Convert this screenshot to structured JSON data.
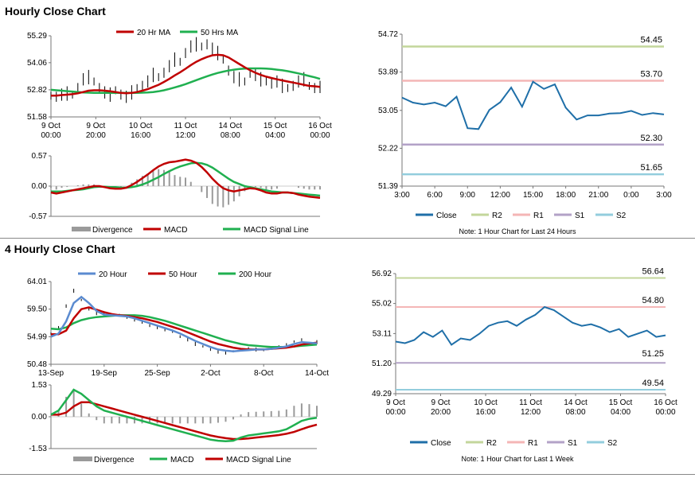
{
  "section1": {
    "title": "Hourly Close Chart"
  },
  "section2": {
    "title": "4 Hourly Close Chart"
  },
  "colors": {
    "close": "#1f6fa8",
    "ma20": "#c00000",
    "ma50": "#20b050",
    "r2": "#c3d69b",
    "r1": "#f4b6b6",
    "s1": "#b3a2c7",
    "s2": "#93cddd",
    "hist": "#9a9a9a",
    "ohlc": "#000000",
    "ma20_4h": "#5b8bd0",
    "ma200": "#20b050"
  },
  "chart_data": [
    {
      "id": "hourly_price",
      "type": "line",
      "legend": [
        "20 Hr MA",
        "50 Hrs MA"
      ],
      "y_ticks": [
        "55.29",
        "54.06",
        "52.82",
        "51.58"
      ],
      "ylim": [
        51.58,
        55.29
      ],
      "x_ticks": [
        [
          "9 Oct",
          "00:00"
        ],
        [
          "9 Oct",
          "20:00"
        ],
        [
          "10 Oct",
          "16:00"
        ],
        [
          "11 Oct",
          "12:00"
        ],
        [
          "14 Oct",
          "08:00"
        ],
        [
          "15 Oct",
          "04:00"
        ],
        [
          "16 Oct",
          "00:00"
        ]
      ],
      "series": [
        {
          "name": "Close",
          "values": [
            52.55,
            52.5,
            52.6,
            52.65,
            52.6,
            52.9,
            53.3,
            53.4,
            53.2,
            52.9,
            52.7,
            52.6,
            52.8,
            52.6,
            52.5,
            52.7,
            52.9,
            53.0,
            53.2,
            53.5,
            53.4,
            53.6,
            53.9,
            54.2,
            54.1,
            54.5,
            54.8,
            54.9,
            54.8,
            54.9,
            54.7,
            54.5,
            54.2,
            53.7,
            53.4,
            53.3,
            53.2,
            53.6,
            53.5,
            53.3,
            53.2,
            53.1,
            53.2,
            53.0,
            52.9,
            53.0,
            53.2,
            53.3,
            53.0,
            52.9,
            52.95
          ]
        },
        {
          "name": "20 Hr MA",
          "values": [
            52.55,
            52.55,
            52.58,
            52.6,
            52.62,
            52.66,
            52.72,
            52.78,
            52.8,
            52.8,
            52.78,
            52.75,
            52.72,
            52.68,
            52.66,
            52.68,
            52.72,
            52.78,
            52.85,
            52.95,
            53.05,
            53.18,
            53.32,
            53.48,
            53.62,
            53.78,
            53.95,
            54.1,
            54.22,
            54.32,
            54.4,
            54.42,
            54.4,
            54.3,
            54.15,
            54.0,
            53.85,
            53.72,
            53.6,
            53.5,
            53.42,
            53.36,
            53.3,
            53.25,
            53.2,
            53.15,
            53.1,
            53.05,
            53.0,
            52.98,
            52.95
          ]
        },
        {
          "name": "50 Hrs MA",
          "values": [
            52.82,
            52.8,
            52.78,
            52.76,
            52.74,
            52.72,
            52.7,
            52.69,
            52.68,
            52.68,
            52.68,
            52.68,
            52.68,
            52.68,
            52.68,
            52.68,
            52.68,
            52.69,
            52.7,
            52.72,
            52.75,
            52.8,
            52.86,
            52.93,
            53.0,
            53.08,
            53.17,
            53.26,
            53.35,
            53.44,
            53.52,
            53.59,
            53.65,
            53.7,
            53.74,
            53.77,
            53.79,
            53.8,
            53.8,
            53.8,
            53.79,
            53.77,
            53.74,
            53.71,
            53.67,
            53.62,
            53.57,
            53.51,
            53.45,
            53.39,
            53.32
          ]
        }
      ]
    },
    {
      "id": "hourly_macd",
      "type": "line",
      "legend": [
        "Divergence",
        "MACD",
        "MACD Signal Line"
      ],
      "y_ticks": [
        "0.57",
        "0.00",
        "-0.57"
      ],
      "ylim": [
        -0.57,
        0.57
      ],
      "series": [
        {
          "name": "MACD",
          "values": [
            -0.12,
            -0.14,
            -0.12,
            -0.1,
            -0.08,
            -0.06,
            -0.04,
            -0.02,
            0.0,
            0.0,
            -0.02,
            -0.04,
            -0.05,
            -0.05,
            -0.03,
            0.02,
            0.08,
            0.15,
            0.22,
            0.3,
            0.37,
            0.42,
            0.45,
            0.46,
            0.48,
            0.5,
            0.48,
            0.44,
            0.36,
            0.26,
            0.14,
            0.04,
            -0.04,
            -0.08,
            -0.1,
            -0.08,
            -0.06,
            -0.04,
            -0.05,
            -0.08,
            -0.12,
            -0.14,
            -0.14,
            -0.12,
            -0.12,
            -0.13,
            -0.16,
            -0.18,
            -0.2,
            -0.21,
            -0.22
          ]
        },
        {
          "name": "MACD Signal Line",
          "values": [
            -0.1,
            -0.1,
            -0.1,
            -0.09,
            -0.08,
            -0.07,
            -0.06,
            -0.04,
            -0.02,
            -0.01,
            -0.01,
            -0.02,
            -0.02,
            -0.03,
            -0.03,
            -0.02,
            0.0,
            0.03,
            0.07,
            0.12,
            0.17,
            0.23,
            0.28,
            0.33,
            0.37,
            0.4,
            0.43,
            0.44,
            0.43,
            0.4,
            0.35,
            0.28,
            0.21,
            0.14,
            0.08,
            0.04,
            0.0,
            -0.02,
            -0.04,
            -0.06,
            -0.08,
            -0.1,
            -0.11,
            -0.12,
            -0.12,
            -0.13,
            -0.14,
            -0.15,
            -0.16,
            -0.17,
            -0.18
          ]
        }
      ]
    },
    {
      "id": "hourly_24h",
      "type": "line",
      "y_ticks": [
        "54.72",
        "53.89",
        "53.05",
        "52.22",
        "51.39"
      ],
      "ylim": [
        51.39,
        54.72
      ],
      "x_ticks": [
        "3:00",
        "6:00",
        "9:00",
        "12:00",
        "15:00",
        "18:00",
        "21:00",
        "0:00",
        "3:00"
      ],
      "levels": [
        {
          "name": "R2",
          "value": 54.45,
          "label": "54.45"
        },
        {
          "name": "R1",
          "value": 53.7,
          "label": "53.70"
        },
        {
          "name": "S1",
          "value": 52.3,
          "label": "52.30"
        },
        {
          "name": "S2",
          "value": 51.65,
          "label": "51.65"
        }
      ],
      "series": [
        {
          "name": "Close",
          "values": [
            53.33,
            53.22,
            53.18,
            53.22,
            53.14,
            53.35,
            52.66,
            52.64,
            53.06,
            53.23,
            53.55,
            53.13,
            53.68,
            53.52,
            53.62,
            53.11,
            52.85,
            52.94,
            52.94,
            52.98,
            52.99,
            53.04,
            52.95,
            52.99,
            52.96
          ]
        }
      ],
      "legend": [
        "Close",
        "R2",
        "R1",
        "S1",
        "S2"
      ],
      "note": "Note: 1 Hour Chart for Last 24 Hours"
    },
    {
      "id": "four_hourly_price",
      "type": "line",
      "legend": [
        "20 Hour",
        "50 Hour",
        "200 Hour"
      ],
      "y_ticks": [
        "64.01",
        "59.50",
        "54.99",
        "50.48"
      ],
      "ylim": [
        50.48,
        64.01
      ],
      "x_ticks": [
        "13-Sep",
        "19-Sep",
        "25-Sep",
        "2-Oct",
        "8-Oct",
        "14-Oct"
      ],
      "series": [
        {
          "name": "Close",
          "values": [
            55.5,
            56.5,
            60.0,
            62.5,
            61.0,
            59.5,
            58.8,
            58.8,
            58.6,
            58.5,
            58.2,
            57.8,
            57.3,
            56.8,
            56.5,
            56.2,
            55.8,
            55.0,
            54.5,
            53.8,
            53.4,
            52.9,
            52.5,
            52.4,
            52.6,
            52.8,
            53.0,
            52.9,
            52.8,
            53.2,
            53.3,
            53.6,
            54.2,
            54.5,
            53.8,
            54.1
          ]
        },
        {
          "name": "20 Hour",
          "values": [
            55.0,
            55.5,
            57.5,
            60.5,
            61.5,
            60.5,
            59.2,
            58.6,
            58.5,
            58.4,
            58.3,
            58.0,
            57.6,
            57.2,
            56.8,
            56.4,
            56.0,
            55.5,
            54.9,
            54.3,
            53.8,
            53.3,
            52.9,
            52.7,
            52.6,
            52.7,
            52.8,
            52.9,
            52.9,
            53.0,
            53.2,
            53.4,
            53.8,
            54.1,
            54.0,
            53.9
          ]
        },
        {
          "name": "50 Hour",
          "values": [
            55.4,
            55.4,
            56.0,
            58.0,
            59.5,
            59.8,
            59.4,
            59.0,
            58.7,
            58.5,
            58.4,
            58.2,
            58.0,
            57.7,
            57.4,
            57.0,
            56.6,
            56.2,
            55.7,
            55.2,
            54.7,
            54.2,
            53.8,
            53.5,
            53.2,
            53.0,
            52.9,
            52.9,
            52.9,
            53.0,
            53.1,
            53.2,
            53.4,
            53.7,
            53.9,
            54.0
          ]
        },
        {
          "name": "200 Hour",
          "values": [
            56.3,
            56.2,
            56.5,
            57.2,
            57.7,
            58.0,
            58.2,
            58.3,
            58.4,
            58.5,
            58.5,
            58.5,
            58.4,
            58.2,
            57.9,
            57.6,
            57.2,
            56.8,
            56.4,
            56.0,
            55.6,
            55.2,
            54.8,
            54.4,
            54.1,
            53.8,
            53.6,
            53.5,
            53.4,
            53.3,
            53.3,
            53.3,
            53.4,
            53.5,
            53.6,
            53.7
          ]
        }
      ]
    },
    {
      "id": "four_hourly_macd",
      "type": "line",
      "legend": [
        "Divergence",
        "MACD",
        "MACD Signal Line"
      ],
      "y_ticks": [
        "1.53",
        "0.00",
        "-1.53"
      ],
      "ylim": [
        -1.53,
        1.53
      ],
      "series": [
        {
          "name": "MACD",
          "values": [
            0.1,
            0.3,
            0.8,
            1.3,
            1.1,
            0.8,
            0.5,
            0.3,
            0.2,
            0.1,
            0.0,
            -0.1,
            -0.2,
            -0.3,
            -0.4,
            -0.5,
            -0.6,
            -0.7,
            -0.8,
            -0.9,
            -1.0,
            -1.1,
            -1.15,
            -1.18,
            -1.15,
            -1.0,
            -0.9,
            -0.85,
            -0.8,
            -0.75,
            -0.7,
            -0.6,
            -0.4,
            -0.2,
            -0.1,
            -0.05
          ]
        },
        {
          "name": "MACD Signal Line",
          "values": [
            0.1,
            0.1,
            0.2,
            0.5,
            0.7,
            0.7,
            0.6,
            0.5,
            0.4,
            0.3,
            0.2,
            0.1,
            0.0,
            -0.1,
            -0.2,
            -0.3,
            -0.4,
            -0.5,
            -0.6,
            -0.7,
            -0.8,
            -0.9,
            -0.97,
            -1.03,
            -1.07,
            -1.07,
            -1.04,
            -1.0,
            -0.96,
            -0.92,
            -0.88,
            -0.82,
            -0.73,
            -0.6,
            -0.48,
            -0.38
          ]
        }
      ]
    },
    {
      "id": "four_hourly_week",
      "type": "line",
      "y_ticks": [
        "56.92",
        "55.02",
        "53.11",
        "51.20",
        "49.29"
      ],
      "ylim": [
        49.29,
        56.92
      ],
      "x_ticks": [
        [
          "9 Oct",
          "00:00"
        ],
        [
          "9 Oct",
          "20:00"
        ],
        [
          "10 Oct",
          "16:00"
        ],
        [
          "11 Oct",
          "12:00"
        ],
        [
          "14 Oct",
          "08:00"
        ],
        [
          "15 Oct",
          "04:00"
        ],
        [
          "16 Oct",
          "00:00"
        ]
      ],
      "levels": [
        {
          "name": "R2",
          "value": 56.64,
          "label": "56.64"
        },
        {
          "name": "R1",
          "value": 54.8,
          "label": "54.80"
        },
        {
          "name": "S1",
          "value": 51.25,
          "label": "51.25"
        },
        {
          "name": "S2",
          "value": 49.54,
          "label": "49.54"
        }
      ],
      "series": [
        {
          "name": "Close",
          "values": [
            52.6,
            52.5,
            52.7,
            53.2,
            52.9,
            53.3,
            52.4,
            52.8,
            52.7,
            53.1,
            53.6,
            53.8,
            53.9,
            53.6,
            54.0,
            54.3,
            54.8,
            54.6,
            54.2,
            53.8,
            53.6,
            53.7,
            53.5,
            53.2,
            53.4,
            52.9,
            53.1,
            53.3,
            52.9,
            53.0
          ]
        }
      ],
      "legend": [
        "Close",
        "R2",
        "R1",
        "S1",
        "S2"
      ],
      "note": "Note: 1 Hour Chart for Last 1 Week"
    }
  ]
}
